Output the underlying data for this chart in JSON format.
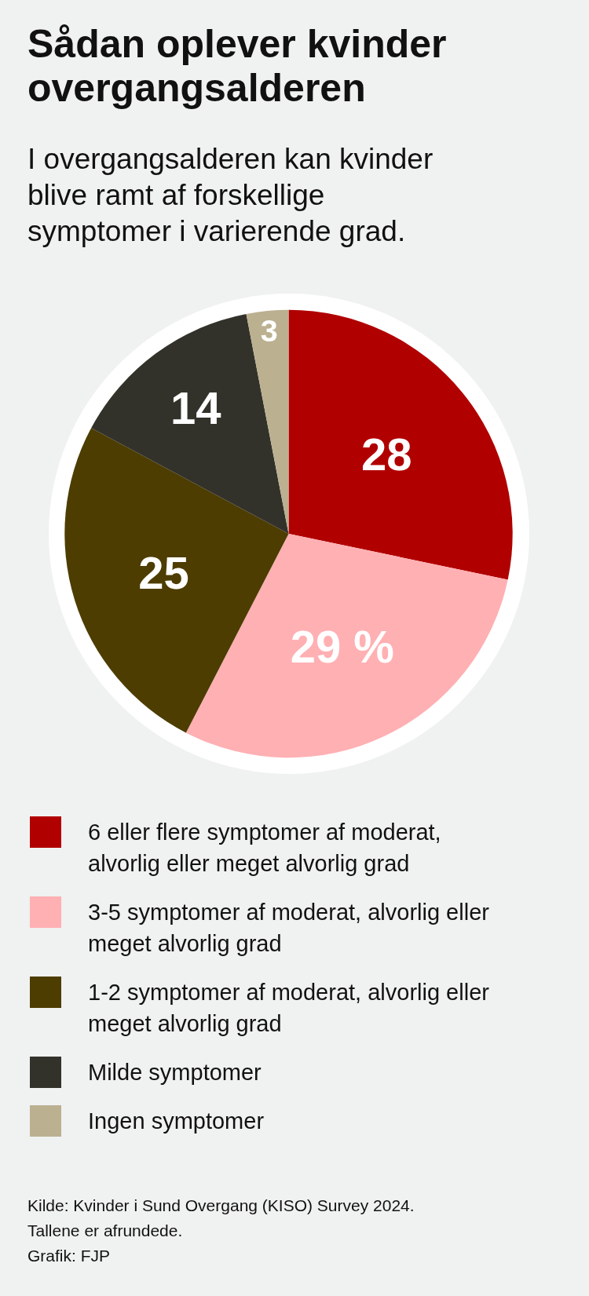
{
  "chart_data": {
    "type": "pie",
    "title": "Sådan oplever kvinder overgangsalderen",
    "subtitle": "I overgangsalderen kan kvinder blive ramt af forskellige symptomer i varierende grad.",
    "categories": [
      "6 eller flere symptomer af moderat, alvorlig eller meget alvorlig grad",
      "3-5 symptomer af moderat, alvorlig eller meget alvorlig grad",
      "1-2 symptomer af moderat, alvorlig eller meget alvorlig grad",
      "Milde symptomer",
      "Ingen symptomer"
    ],
    "values": [
      28,
      29,
      25,
      14,
      3
    ],
    "value_labels": [
      "28",
      "29 %",
      "25",
      "14",
      "3"
    ],
    "colors": [
      "#b10000",
      "#ffb0b3",
      "#4d3d00",
      "#33322a",
      "#bbb090"
    ],
    "legend": "bottom",
    "annotations": [
      "Kilde: Kvinder i Sund Overgang (KISO) Survey 2024.",
      "Tallene er afrundede.",
      "Grafik: FJP"
    ]
  }
}
